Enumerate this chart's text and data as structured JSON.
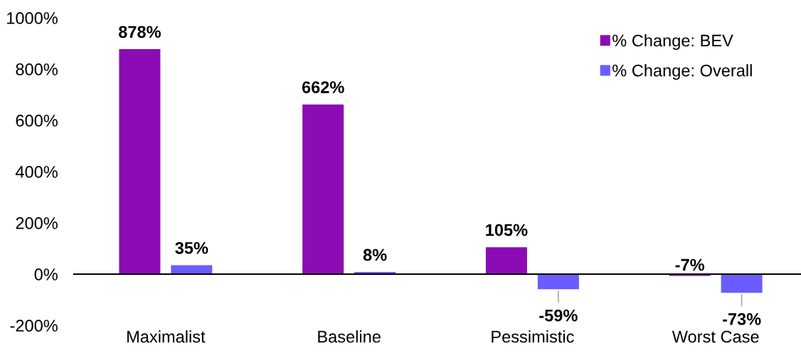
{
  "chart_data": {
    "type": "bar",
    "categories": [
      "Maximalist",
      "Baseline",
      "Pessimistic",
      "Worst Case"
    ],
    "series": [
      {
        "name": "% Change: BEV",
        "color": "#8b0cb5",
        "values": [
          878,
          662,
          105,
          -7
        ],
        "value_labels": [
          "878%",
          "662%",
          "105%",
          "-7%"
        ]
      },
      {
        "name": "% Change: Overall",
        "color": "#6a5cff",
        "values": [
          35,
          8,
          -59,
          -73
        ],
        "value_labels": [
          "35%",
          "8%",
          "-59%",
          "-73%"
        ]
      }
    ],
    "ylim": [
      -200,
      1000
    ],
    "yticks": [
      {
        "value": -200,
        "label": "-200%"
      },
      {
        "value": 0,
        "label": "0%"
      },
      {
        "value": 200,
        "label": "200%"
      },
      {
        "value": 400,
        "label": "400%"
      },
      {
        "value": 600,
        "label": "600%"
      },
      {
        "value": 800,
        "label": "800%"
      },
      {
        "value": 1000,
        "label": "1000%"
      }
    ],
    "legend": "top right"
  }
}
